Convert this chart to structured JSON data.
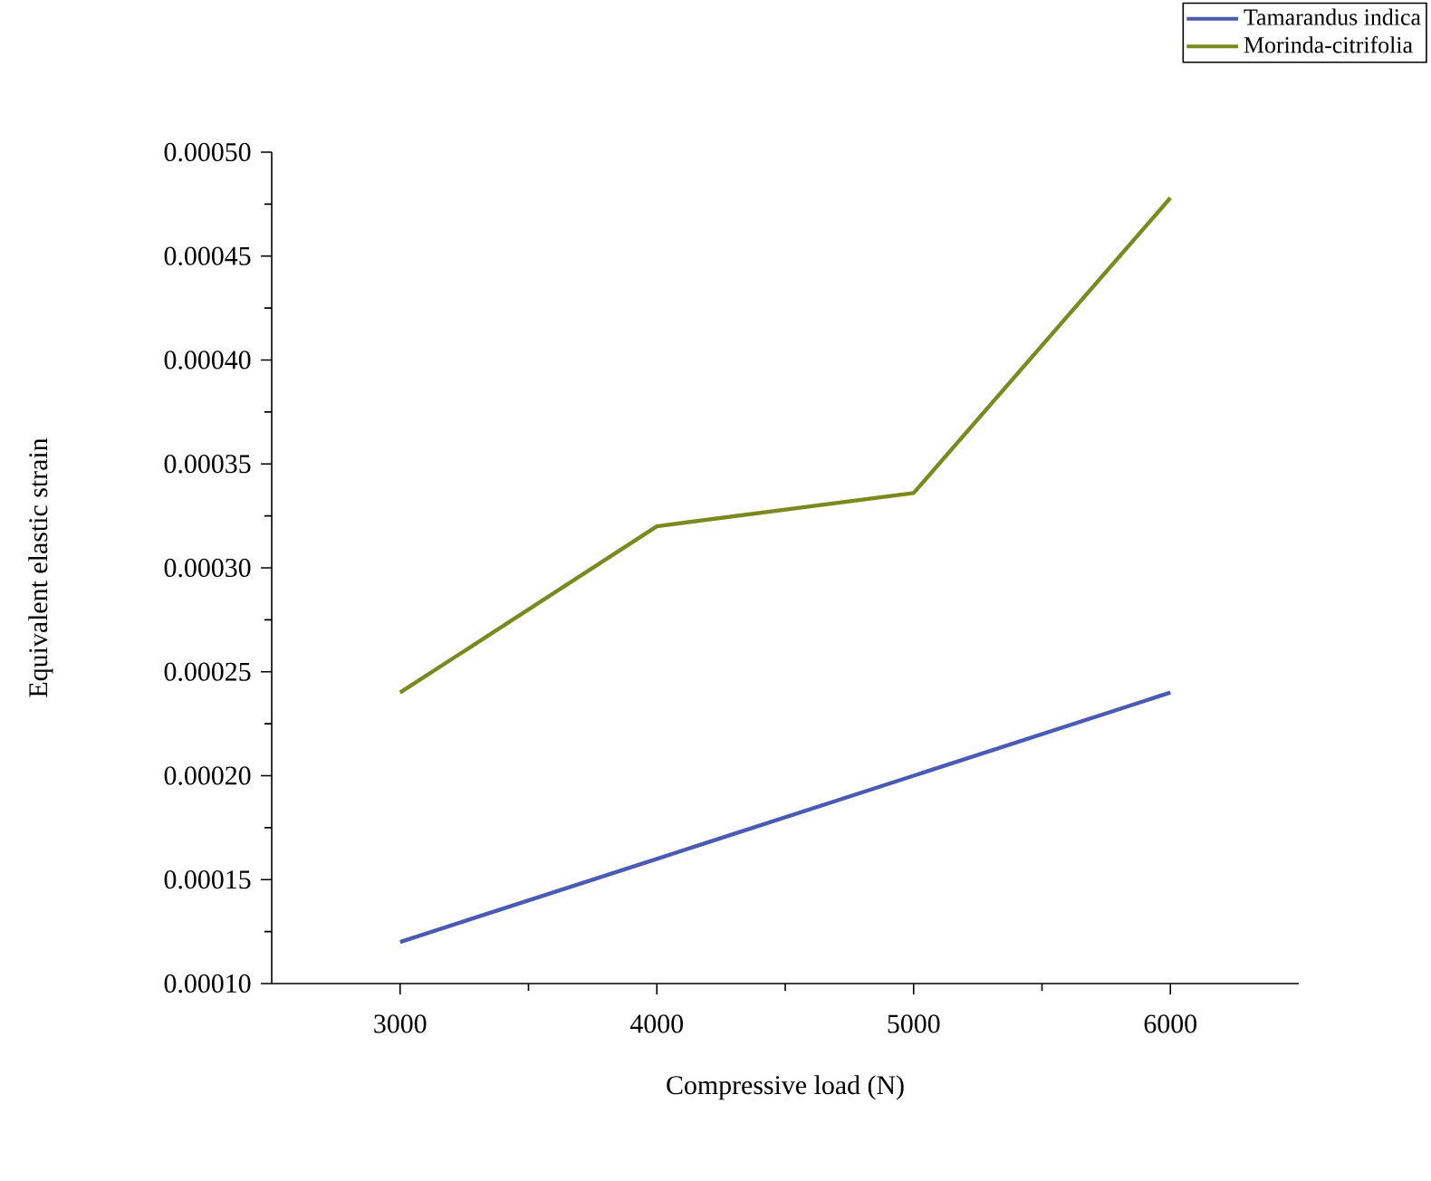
{
  "chart_data": {
    "type": "line",
    "xlabel": "Compressive load (N)",
    "ylabel": "Equivalent elastic strain",
    "x": [
      3000,
      4000,
      5000,
      6000
    ],
    "series": [
      {
        "name": "Tamarandus indica",
        "color": "#4a5bb5",
        "values": [
          0.00012,
          0.00016,
          0.0002,
          0.00024
        ]
      },
      {
        "name": "Morinda-citrifolia",
        "color": "#7a8a1e",
        "values": [
          0.00024,
          0.00032,
          0.000336,
          0.000478
        ]
      }
    ],
    "xlim": [
      2500,
      6500
    ],
    "ylim": [
      0.0001,
      0.0005
    ],
    "xticks": [
      3000,
      4000,
      5000,
      6000
    ],
    "yticks": [
      {
        "value": 0.0001,
        "label": "0.00010"
      },
      {
        "value": 0.00015,
        "label": "0.00015"
      },
      {
        "value": 0.0002,
        "label": "0.00020"
      },
      {
        "value": 0.00025,
        "label": "0.00025"
      },
      {
        "value": 0.0003,
        "label": "0.00030"
      },
      {
        "value": 0.00035,
        "label": "0.00035"
      },
      {
        "value": 0.0004,
        "label": "0.00040"
      },
      {
        "value": 0.00045,
        "label": "0.00045"
      },
      {
        "value": 0.0005,
        "label": "0.00050"
      }
    ],
    "legend": "top right",
    "marker": "none",
    "line_style": "solid",
    "grid": false
  }
}
